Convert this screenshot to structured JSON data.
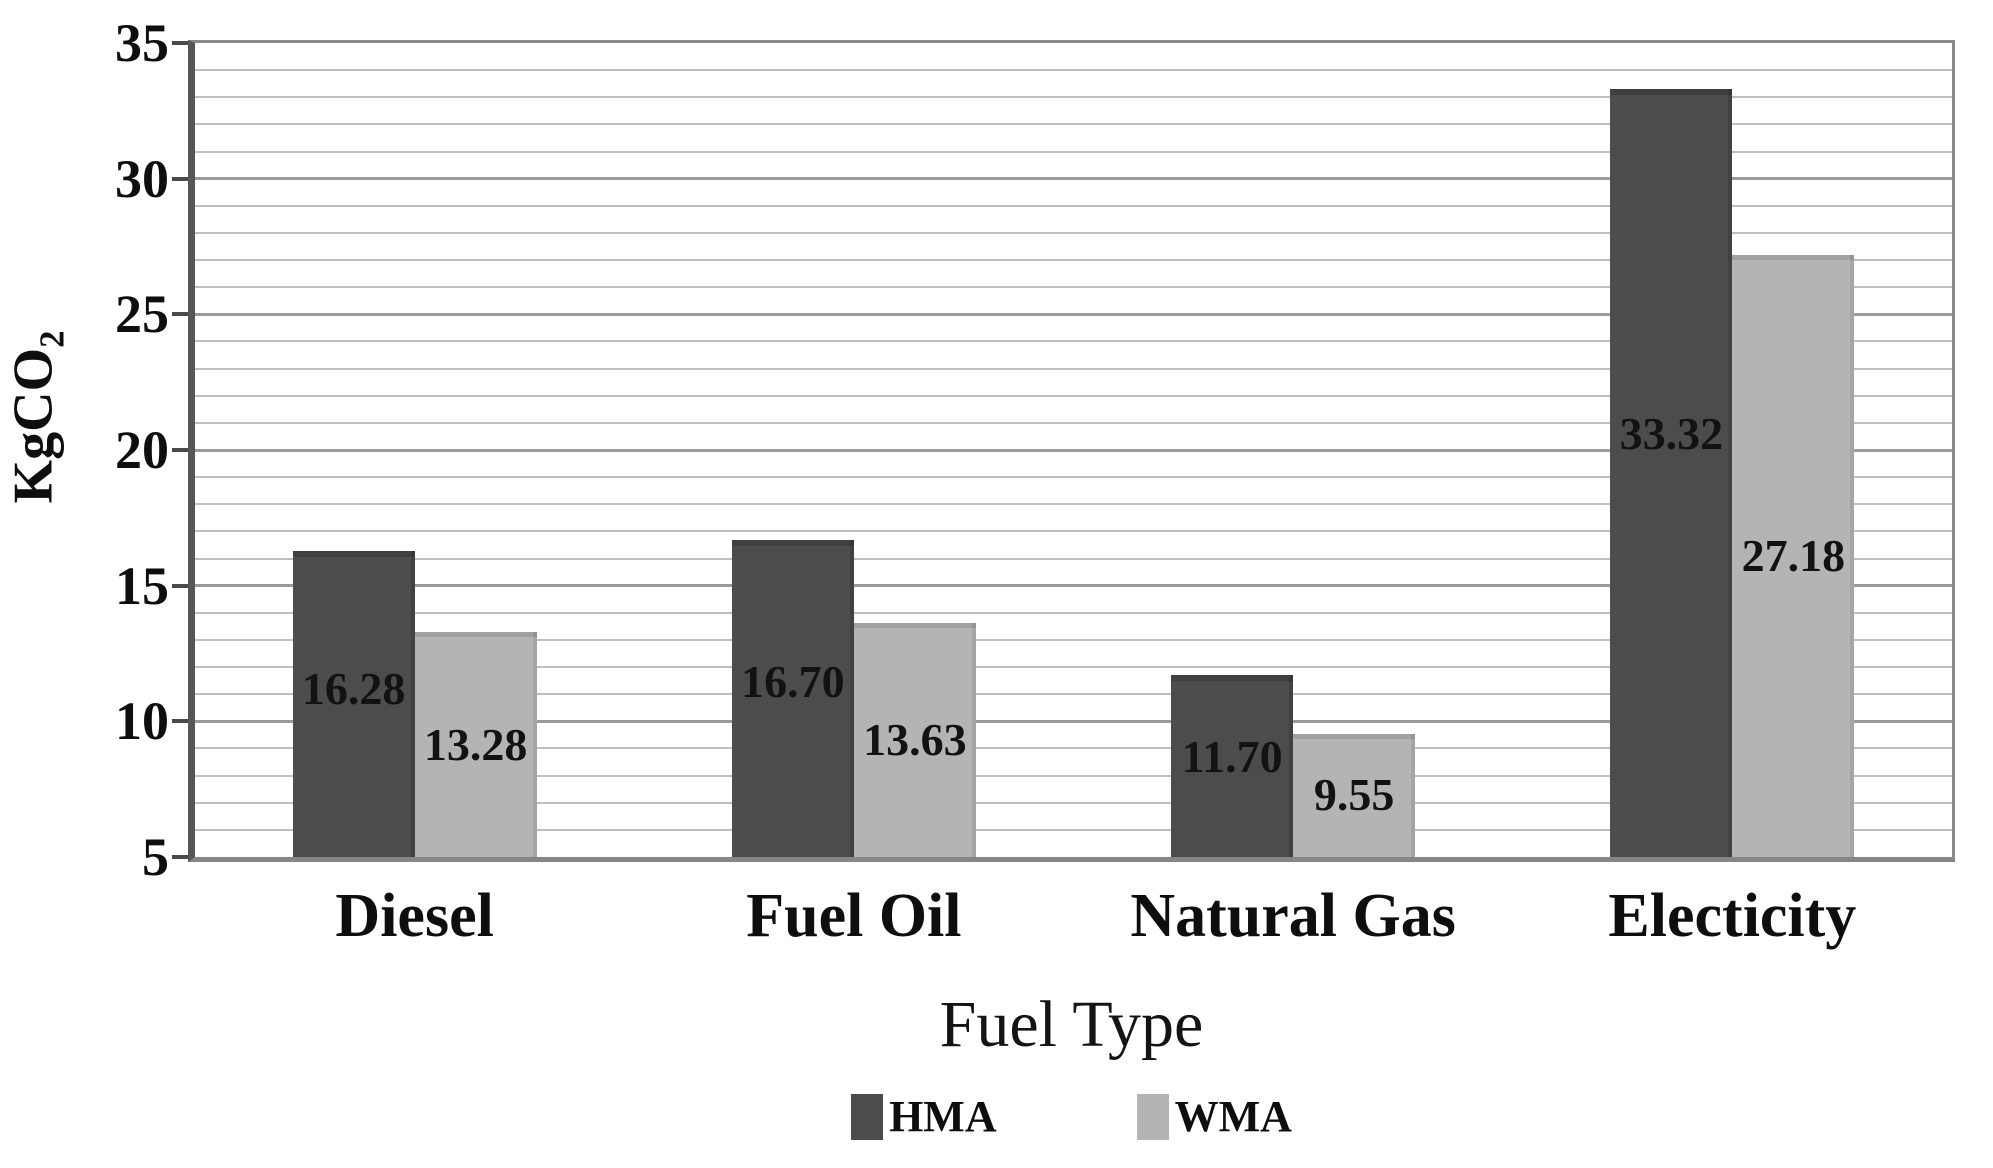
{
  "figure": {
    "background": "#ffffff"
  },
  "chart_data": {
    "type": "bar",
    "title": "",
    "xlabel": "Fuel Type",
    "ylabel": {
      "base": "KgCO",
      "subscript": "2"
    },
    "categories": [
      "Diesel",
      "Fuel Oil",
      "Natural Gas",
      "Electicity"
    ],
    "series": [
      {
        "name": "HMA",
        "color": "#4c4c4e",
        "values": [
          16.28,
          16.7,
          11.7,
          33.32
        ]
      },
      {
        "name": "WMA",
        "color": "#b4b4b4",
        "values": [
          13.28,
          13.63,
          9.55,
          27.18
        ]
      }
    ],
    "ylim": [
      5,
      35
    ],
    "ytick_step": 5,
    "minor_step": 1,
    "yticks": [
      "5",
      "10",
      "15",
      "20",
      "25",
      "30",
      "35"
    ],
    "grid": "horizontal, minor every 1 unit, major every 5 units",
    "legend_position": "bottom-center",
    "bar_baseline": 5,
    "value_labels": [
      "16.28",
      "16.70",
      "11.70",
      "33.32",
      "13.28",
      "13.63",
      "9.55",
      "27.18"
    ]
  },
  "colors": {
    "hma_bar": "#4c4c4e",
    "wma_bar": "#b4b4b4",
    "gridline_minor": "#bfbfbf",
    "gridline_major": "#9b9b9b",
    "axis_line": "#565658",
    "plot_border": "#8a8a8a",
    "text": "#141414"
  }
}
